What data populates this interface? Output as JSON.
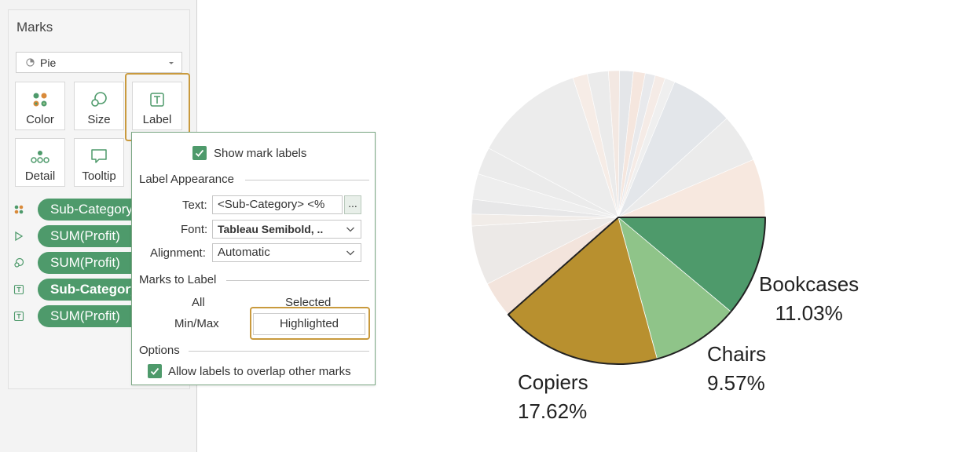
{
  "marks_card": {
    "title": "Marks",
    "mark_type": "Pie",
    "buttons": {
      "color": "Color",
      "size": "Size",
      "label": "Label",
      "detail": "Detail",
      "tooltip": "Tooltip"
    },
    "pills": [
      {
        "icon": "color-dots-icon",
        "label": "Sub-Category",
        "bold": false
      },
      {
        "icon": "angle-icon",
        "label": "SUM(Profit)",
        "bold": false
      },
      {
        "icon": "size-icon",
        "label": "SUM(Profit)",
        "bold": false
      },
      {
        "icon": "label-icon",
        "label": "Sub-Category",
        "bold": true
      },
      {
        "icon": "label-icon",
        "label": "SUM(Profit)",
        "bold": false
      }
    ]
  },
  "label_popup": {
    "show_mark_labels": "Show mark labels",
    "label_appearance": "Label Appearance",
    "text_label": "Text:",
    "text_value": "<Sub-Category> <%",
    "ellipsis": "...",
    "font_label": "Font:",
    "font_value": "Tableau Semibold, ..",
    "alignment_label": "Alignment:",
    "alignment_value": "Automatic",
    "marks_to_label": "Marks to Label",
    "all": "All",
    "selected": "Selected",
    "min_max": "Min/Max",
    "highlighted": "Highlighted",
    "options": "Options",
    "allow_overlap": "Allow labels to overlap other marks"
  },
  "colors": {
    "accent_green": "#4e9a6b",
    "highlight_ring": "#c99a3e",
    "copiers": "#b8902f",
    "chairs": "#8fc489",
    "bookcases": "#4e9a6b"
  },
  "chart_data": {
    "type": "pie",
    "highlighted_slices": [
      {
        "category": "Bookcases",
        "value_label": "11.03%",
        "value": 11.03,
        "color": "#4e9a6b"
      },
      {
        "category": "Chairs",
        "value_label": "9.57%",
        "value": 9.57,
        "color": "#8fc489"
      },
      {
        "category": "Copiers",
        "value_label": "17.62%",
        "value": 17.62,
        "color": "#b8902f"
      }
    ],
    "faded_slices": [
      {
        "value": 4.0,
        "color": "#f3e4dc"
      },
      {
        "value": 6.5,
        "color": "#ece9e7"
      },
      {
        "value": 1.3,
        "color": "#f1ece8"
      },
      {
        "value": 1.6,
        "color": "#e7e7e8"
      },
      {
        "value": 2.8,
        "color": "#eeeeee"
      },
      {
        "value": 3.0,
        "color": "#ebebeb"
      },
      {
        "value": 12.1,
        "color": "#ececec"
      },
      {
        "value": 1.6,
        "color": "#f6ece6"
      },
      {
        "value": 2.3,
        "color": "#ebebeb"
      },
      {
        "value": 1.2,
        "color": "#f3e8e2"
      },
      {
        "value": 1.5,
        "color": "#e4e6e9"
      },
      {
        "value": 1.3,
        "color": "#f5e6de"
      },
      {
        "value": 1.1,
        "color": "#e8e9ec"
      },
      {
        "value": 1.1,
        "color": "#f5ebe6"
      }
    ],
    "faded_slices_top": [
      {
        "value": 1.1,
        "color": "#efefef"
      },
      {
        "value": 6.9,
        "color": "#e3e6ea"
      },
      {
        "value": 5.3,
        "color": "#ebebeb"
      },
      {
        "value": 6.4,
        "color": "#f7e8df"
      }
    ]
  }
}
